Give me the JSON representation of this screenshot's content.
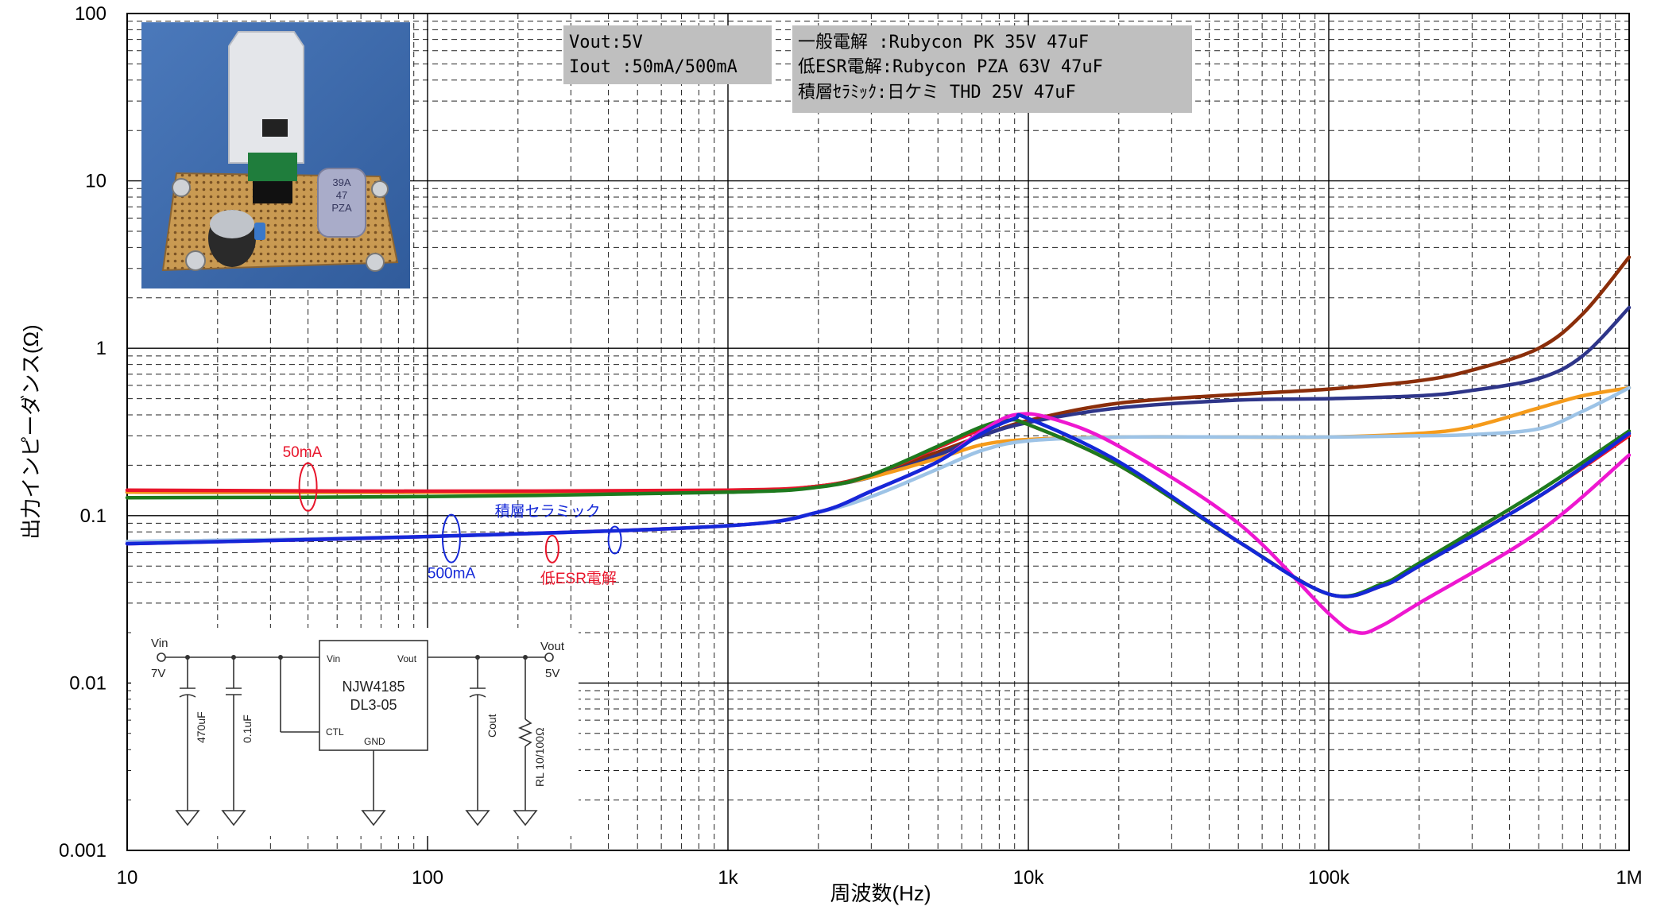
{
  "chart_data": {
    "type": "line",
    "title": "",
    "xlabel": "周波数(Hz)",
    "ylabel": "出力インピーダンス(Ω)",
    "x_scale": "log",
    "y_scale": "log",
    "xlim": [
      10,
      1000000
    ],
    "ylim": [
      0.001,
      100
    ],
    "x_ticks": [
      {
        "value": 10,
        "label": "10"
      },
      {
        "value": 100,
        "label": "100"
      },
      {
        "value": 1000,
        "label": "1k"
      },
      {
        "value": 10000,
        "label": "10k"
      },
      {
        "value": 100000,
        "label": "100k"
      },
      {
        "value": 1000000,
        "label": "1M"
      }
    ],
    "y_ticks": [
      {
        "value": 100,
        "label": "100"
      },
      {
        "value": 10,
        "label": "10"
      },
      {
        "value": 1,
        "label": "1"
      },
      {
        "value": 0.1,
        "label": "0.1"
      },
      {
        "value": 0.01,
        "label": "0.01"
      },
      {
        "value": 0.001,
        "label": "0.001"
      }
    ],
    "grid": true,
    "series": [
      {
        "color": "#8b2e0a",
        "points": [
          [
            10,
            0.138
          ],
          [
            100,
            0.138
          ],
          [
            1000,
            0.14
          ],
          [
            2000,
            0.15
          ],
          [
            3000,
            0.175
          ],
          [
            5000,
            0.24
          ],
          [
            7000,
            0.3
          ],
          [
            10000,
            0.37
          ],
          [
            20000,
            0.47
          ],
          [
            50000,
            0.53
          ],
          [
            100000,
            0.57
          ],
          [
            200000,
            0.64
          ],
          [
            300000,
            0.74
          ],
          [
            500000,
            1.0
          ],
          [
            700000,
            1.6
          ],
          [
            1000000,
            3.5
          ]
        ]
      },
      {
        "color": "#2e3589",
        "points": [
          [
            10,
            0.138
          ],
          [
            100,
            0.138
          ],
          [
            1000,
            0.14
          ],
          [
            2000,
            0.15
          ],
          [
            3000,
            0.17
          ],
          [
            5000,
            0.23
          ],
          [
            7000,
            0.3
          ],
          [
            10000,
            0.36
          ],
          [
            20000,
            0.44
          ],
          [
            50000,
            0.49
          ],
          [
            100000,
            0.5
          ],
          [
            200000,
            0.52
          ],
          [
            300000,
            0.56
          ],
          [
            500000,
            0.66
          ],
          [
            700000,
            0.9
          ],
          [
            1000000,
            1.75
          ]
        ]
      },
      {
        "color": "#f59b1b",
        "points": [
          [
            10,
            0.138
          ],
          [
            100,
            0.138
          ],
          [
            1000,
            0.14
          ],
          [
            2000,
            0.15
          ],
          [
            3000,
            0.17
          ],
          [
            5000,
            0.22
          ],
          [
            7000,
            0.265
          ],
          [
            10000,
            0.285
          ],
          [
            20000,
            0.295
          ],
          [
            50000,
            0.295
          ],
          [
            100000,
            0.295
          ],
          [
            200000,
            0.31
          ],
          [
            300000,
            0.34
          ],
          [
            500000,
            0.44
          ],
          [
            700000,
            0.52
          ],
          [
            1000000,
            0.58
          ]
        ]
      },
      {
        "color": "#9dc3e6",
        "points": [
          [
            10,
            0.07
          ],
          [
            100,
            0.075
          ],
          [
            1000,
            0.087
          ],
          [
            2000,
            0.105
          ],
          [
            3000,
            0.13
          ],
          [
            5000,
            0.19
          ],
          [
            7000,
            0.245
          ],
          [
            10000,
            0.28
          ],
          [
            20000,
            0.295
          ],
          [
            50000,
            0.295
          ],
          [
            100000,
            0.295
          ],
          [
            200000,
            0.3
          ],
          [
            300000,
            0.305
          ],
          [
            500000,
            0.33
          ],
          [
            700000,
            0.42
          ],
          [
            1000000,
            0.58
          ]
        ]
      },
      {
        "color": "#e8152b",
        "points": [
          [
            10,
            0.142
          ],
          [
            100,
            0.14
          ],
          [
            1000,
            0.142
          ],
          [
            2000,
            0.15
          ],
          [
            3000,
            0.175
          ],
          [
            5000,
            0.255
          ],
          [
            7000,
            0.33
          ],
          [
            8500,
            0.37
          ],
          [
            10000,
            0.35
          ],
          [
            20000,
            0.2
          ],
          [
            50000,
            0.07
          ],
          [
            100000,
            0.034
          ],
          [
            150000,
            0.038
          ],
          [
            200000,
            0.05
          ],
          [
            500000,
            0.13
          ],
          [
            1000000,
            0.3
          ]
        ]
      },
      {
        "color": "#1e7a1e",
        "points": [
          [
            10,
            0.128
          ],
          [
            100,
            0.13
          ],
          [
            1000,
            0.138
          ],
          [
            2000,
            0.148
          ],
          [
            3000,
            0.175
          ],
          [
            5000,
            0.26
          ],
          [
            7000,
            0.34
          ],
          [
            8500,
            0.37
          ],
          [
            10000,
            0.35
          ],
          [
            20000,
            0.2
          ],
          [
            50000,
            0.07
          ],
          [
            100000,
            0.034
          ],
          [
            150000,
            0.039
          ],
          [
            200000,
            0.052
          ],
          [
            500000,
            0.14
          ],
          [
            1000000,
            0.32
          ]
        ]
      },
      {
        "color": "#ee17d0",
        "points": [
          [
            10,
            0.068
          ],
          [
            100,
            0.075
          ],
          [
            1000,
            0.087
          ],
          [
            2000,
            0.105
          ],
          [
            3000,
            0.14
          ],
          [
            5000,
            0.21
          ],
          [
            7000,
            0.32
          ],
          [
            9000,
            0.4
          ],
          [
            12000,
            0.38
          ],
          [
            20000,
            0.26
          ],
          [
            50000,
            0.09
          ],
          [
            100000,
            0.026
          ],
          [
            125000,
            0.02
          ],
          [
            150000,
            0.022
          ],
          [
            200000,
            0.03
          ],
          [
            500000,
            0.08
          ],
          [
            1000000,
            0.23
          ]
        ]
      },
      {
        "color": "#1428d8",
        "points": [
          [
            10,
            0.068
          ],
          [
            100,
            0.075
          ],
          [
            1000,
            0.087
          ],
          [
            2000,
            0.105
          ],
          [
            3000,
            0.14
          ],
          [
            5000,
            0.21
          ],
          [
            7000,
            0.31
          ],
          [
            9000,
            0.38
          ],
          [
            10000,
            0.38
          ],
          [
            20000,
            0.21
          ],
          [
            50000,
            0.07
          ],
          [
            100000,
            0.034
          ],
          [
            150000,
            0.038
          ],
          [
            200000,
            0.05
          ],
          [
            500000,
            0.13
          ],
          [
            1000000,
            0.31
          ]
        ]
      }
    ],
    "annotations": [
      {
        "text": "50mA",
        "color": "#e8152b",
        "at": [
          40,
          0.13
        ]
      },
      {
        "text": "500mA",
        "color": "#1428d8",
        "at": [
          120,
          0.073
        ]
      },
      {
        "text": "積層セラミック",
        "color": "#1428d8",
        "at": [
          420,
          0.095
        ]
      },
      {
        "text": "低ESR電解",
        "color": "#e8152b",
        "at": [
          260,
          0.045
        ]
      }
    ]
  },
  "info_boxes": [
    {
      "lines": [
        "Vout:5V",
        "Iout :50mA/500mA"
      ]
    },
    {
      "lines": [
        "一般電解  :Rubycon PK 35V 47uF",
        "低ESR電解:Rubycon PZA 63V 47uF",
        "積層ｾﾗﾐｯｸ:日ケミ THD 25V 47uF"
      ]
    }
  ],
  "photo": {
    "capacitor_label": [
      "39A",
      "47",
      "PZA"
    ]
  },
  "schematic": {
    "vin_label": "Vin",
    "vin_value": "7V",
    "vout_label": "Vout",
    "vout_value": "5V",
    "ic_name": [
      "NJW4185",
      "DL3-05"
    ],
    "pin_vin": "Vin",
    "pin_vout": "Vout",
    "pin_ctl": "CTL",
    "pin_gnd": "GND",
    "c_in": "470uF",
    "c_bypass": "0.1uF",
    "c_out": "Cout",
    "rl": "RL 10/100Ω"
  }
}
